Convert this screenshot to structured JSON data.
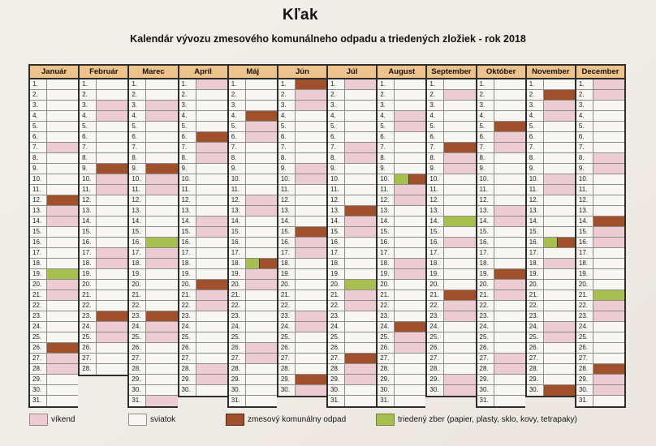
{
  "title": "Kľak",
  "subtitle": "Kalendár vývozu zmesového komunálneho odpadu a triedených zložiek - rok 2018",
  "colors": {
    "weekend": "#ecccd2",
    "holiday": "#f8f6f2",
    "waste": "#a0502b",
    "sorted": "#a6bf4e",
    "header_bg": "#eec28c",
    "cell_bg": "#f8f6f2",
    "border_thick": "#2d2d2d",
    "border_thin": "#8d8d8d"
  },
  "legend": [
    {
      "key": "weekend",
      "label": "víkend"
    },
    {
      "key": "holiday",
      "label": "sviatok"
    },
    {
      "key": "waste",
      "label": "zmesový komunálny odpad"
    },
    {
      "key": "sorted",
      "label": "triedený zber (papier, plasty, sklo, kovy, tetrapaky)"
    }
  ],
  "calendar": {
    "year": 2018,
    "day_suffix": ".",
    "months": [
      {
        "name": "Január",
        "days": 31,
        "weekend": [
          7,
          13,
          14,
          20,
          21,
          27,
          28
        ],
        "waste": [
          12,
          26
        ],
        "sorted": [
          19
        ]
      },
      {
        "name": "Február",
        "days": 28,
        "weekend": [
          3,
          4,
          10,
          11,
          17,
          18,
          24,
          25
        ],
        "waste": [
          9,
          23
        ],
        "sorted": []
      },
      {
        "name": "Marec",
        "days": 31,
        "weekend": [
          3,
          4,
          10,
          11,
          17,
          18,
          24,
          25,
          31
        ],
        "waste": [
          9,
          23
        ],
        "sorted": [
          16
        ]
      },
      {
        "name": "Apríl",
        "days": 30,
        "weekend": [
          1,
          7,
          8,
          14,
          15,
          21,
          22,
          28,
          29
        ],
        "waste": [
          6,
          20
        ],
        "sorted": []
      },
      {
        "name": "Máj",
        "days": 31,
        "weekend": [
          5,
          6,
          12,
          13,
          19,
          20,
          26,
          27
        ],
        "waste": [
          4,
          18
        ],
        "sorted": [
          18
        ]
      },
      {
        "name": "Jún",
        "days": 30,
        "weekend": [
          2,
          3,
          9,
          10,
          16,
          17,
          23,
          24,
          30
        ],
        "waste": [
          1,
          15,
          29
        ],
        "sorted": []
      },
      {
        "name": "Júl",
        "days": 31,
        "weekend": [
          1,
          7,
          8,
          14,
          15,
          21,
          22,
          28,
          29
        ],
        "waste": [
          13,
          27
        ],
        "sorted": [
          20
        ]
      },
      {
        "name": "August",
        "days": 31,
        "weekend": [
          4,
          5,
          11,
          12,
          18,
          19,
          25,
          26
        ],
        "waste": [
          10,
          24
        ],
        "sorted": [
          10
        ]
      },
      {
        "name": "September",
        "days": 30,
        "weekend": [
          2,
          8,
          9,
          16,
          22,
          23,
          29,
          30
        ],
        "waste": [
          7,
          21
        ],
        "sorted": [
          14
        ]
      },
      {
        "name": "Október",
        "days": 31,
        "weekend": [
          6,
          7,
          13,
          14,
          20,
          21,
          27,
          28
        ],
        "waste": [
          5,
          19
        ],
        "sorted": []
      },
      {
        "name": "November",
        "days": 30,
        "weekend": [
          3,
          4,
          10,
          11,
          18,
          24,
          25
        ],
        "waste": [
          2,
          16,
          30
        ],
        "sorted": [
          16
        ]
      },
      {
        "name": "December",
        "days": 31,
        "weekend": [
          1,
          2,
          8,
          9,
          15,
          16,
          22,
          23,
          29,
          30
        ],
        "waste": [
          14,
          28
        ],
        "sorted": [
          21
        ]
      }
    ]
  }
}
